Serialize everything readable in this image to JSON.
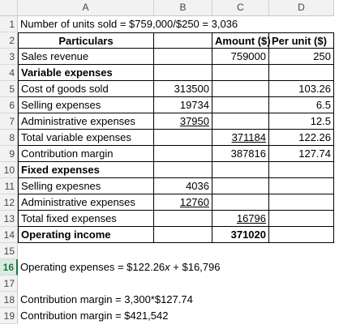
{
  "columns": [
    "A",
    "B",
    "C",
    "D"
  ],
  "rows": [
    {
      "num": 1,
      "cells": [
        "Number of units sold = $759,000/$250 = 3,036",
        null,
        null,
        null
      ]
    },
    {
      "num": 2,
      "cells": [
        "Particulars",
        null,
        "Amount ($)",
        "Per unit ($)"
      ]
    },
    {
      "num": 3,
      "cells": [
        "Sales revenue",
        null,
        759000,
        250
      ]
    },
    {
      "num": 4,
      "cells": [
        "Variable expenses",
        null,
        null,
        null
      ]
    },
    {
      "num": 5,
      "cells": [
        "Cost of goods sold",
        313500,
        null,
        103.26
      ]
    },
    {
      "num": 6,
      "cells": [
        "Selling expenses",
        19734,
        null,
        6.5
      ]
    },
    {
      "num": 7,
      "cells": [
        "Administrative expenses",
        37950,
        null,
        12.5
      ]
    },
    {
      "num": 8,
      "cells": [
        "Total variable expenses",
        null,
        371184,
        122.26
      ]
    },
    {
      "num": 9,
      "cells": [
        "Contribution margin",
        null,
        387816,
        127.74
      ]
    },
    {
      "num": 10,
      "cells": [
        "Fixed expenses",
        null,
        null,
        null
      ]
    },
    {
      "num": 11,
      "cells": [
        "Selling expesnes",
        4036,
        null,
        null
      ]
    },
    {
      "num": 12,
      "cells": [
        "Administrative expenses",
        12760,
        null,
        null
      ]
    },
    {
      "num": 13,
      "cells": [
        "Total fixed expenses",
        null,
        16796,
        null
      ]
    },
    {
      "num": 14,
      "cells": [
        "Operating income",
        null,
        371020,
        null
      ]
    },
    {
      "num": 15,
      "cells": [
        null,
        null,
        null,
        null
      ]
    },
    {
      "num": 16,
      "cells": [
        [
          "Operating expenses  = $122.26",
          "x",
          " + $16,796"
        ],
        null,
        null,
        null
      ]
    },
    {
      "num": 17,
      "cells": [
        null,
        null,
        null,
        null
      ]
    },
    {
      "num": 18,
      "cells": [
        "Contribution margin = 3,300*$127.74",
        null,
        null,
        null
      ]
    },
    {
      "num": 19,
      "cells": [
        "Contribution margin = $421,542",
        null,
        null,
        null
      ]
    }
  ]
}
